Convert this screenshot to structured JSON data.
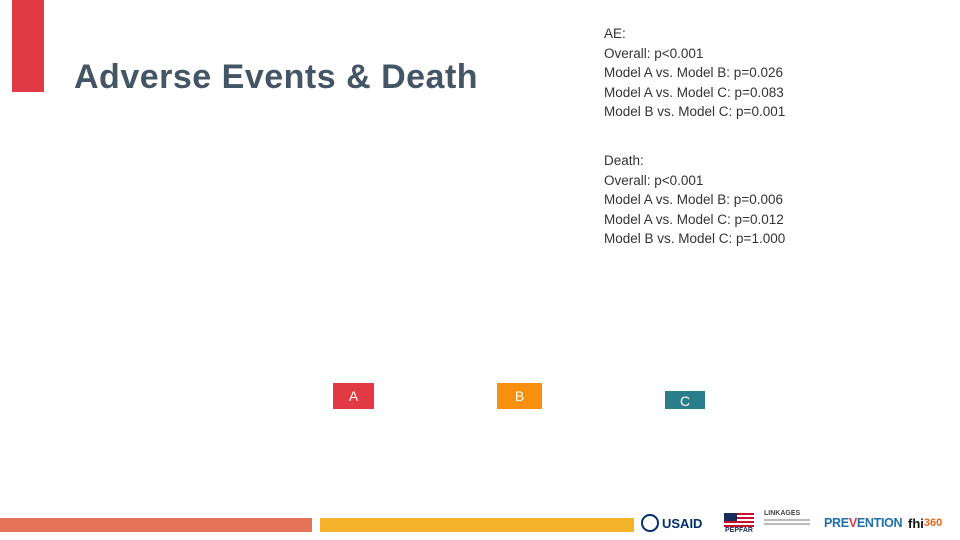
{
  "slide": {
    "title": "Adverse Events & Death"
  },
  "stats": {
    "ae": {
      "heading": "AE:",
      "lines": [
        "Overall: p<0.001",
        "Model A vs. Model B: p=0.026",
        "Model A vs. Model C: p=0.083",
        "Model B vs. Model C: p=0.001"
      ]
    },
    "death": {
      "heading": "Death:",
      "lines": [
        "Overall: p<0.001",
        "Model A vs. Model B: p=0.006",
        "Model A vs. Model C: p=0.012",
        "Model B vs. Model C: p=1.000"
      ]
    }
  },
  "group_labels": {
    "a": "A",
    "b": "B",
    "c": "C"
  },
  "colors": {
    "accent_red": "#e13a44",
    "orange": "#f7900e",
    "teal": "#2a7d8d",
    "stripe_coral": "#e57358",
    "stripe_gold": "#f5b32b",
    "title_slate": "#445566"
  },
  "footer": {
    "logos": {
      "usaid": "USAID",
      "pepfar": "PEPFAR",
      "linkages": "LINKAGES",
      "prevention_pre": "PRE",
      "prevention_v": "V",
      "prevention_post": "ENTION",
      "fhi": "fhi",
      "fhi_num": "360"
    }
  }
}
